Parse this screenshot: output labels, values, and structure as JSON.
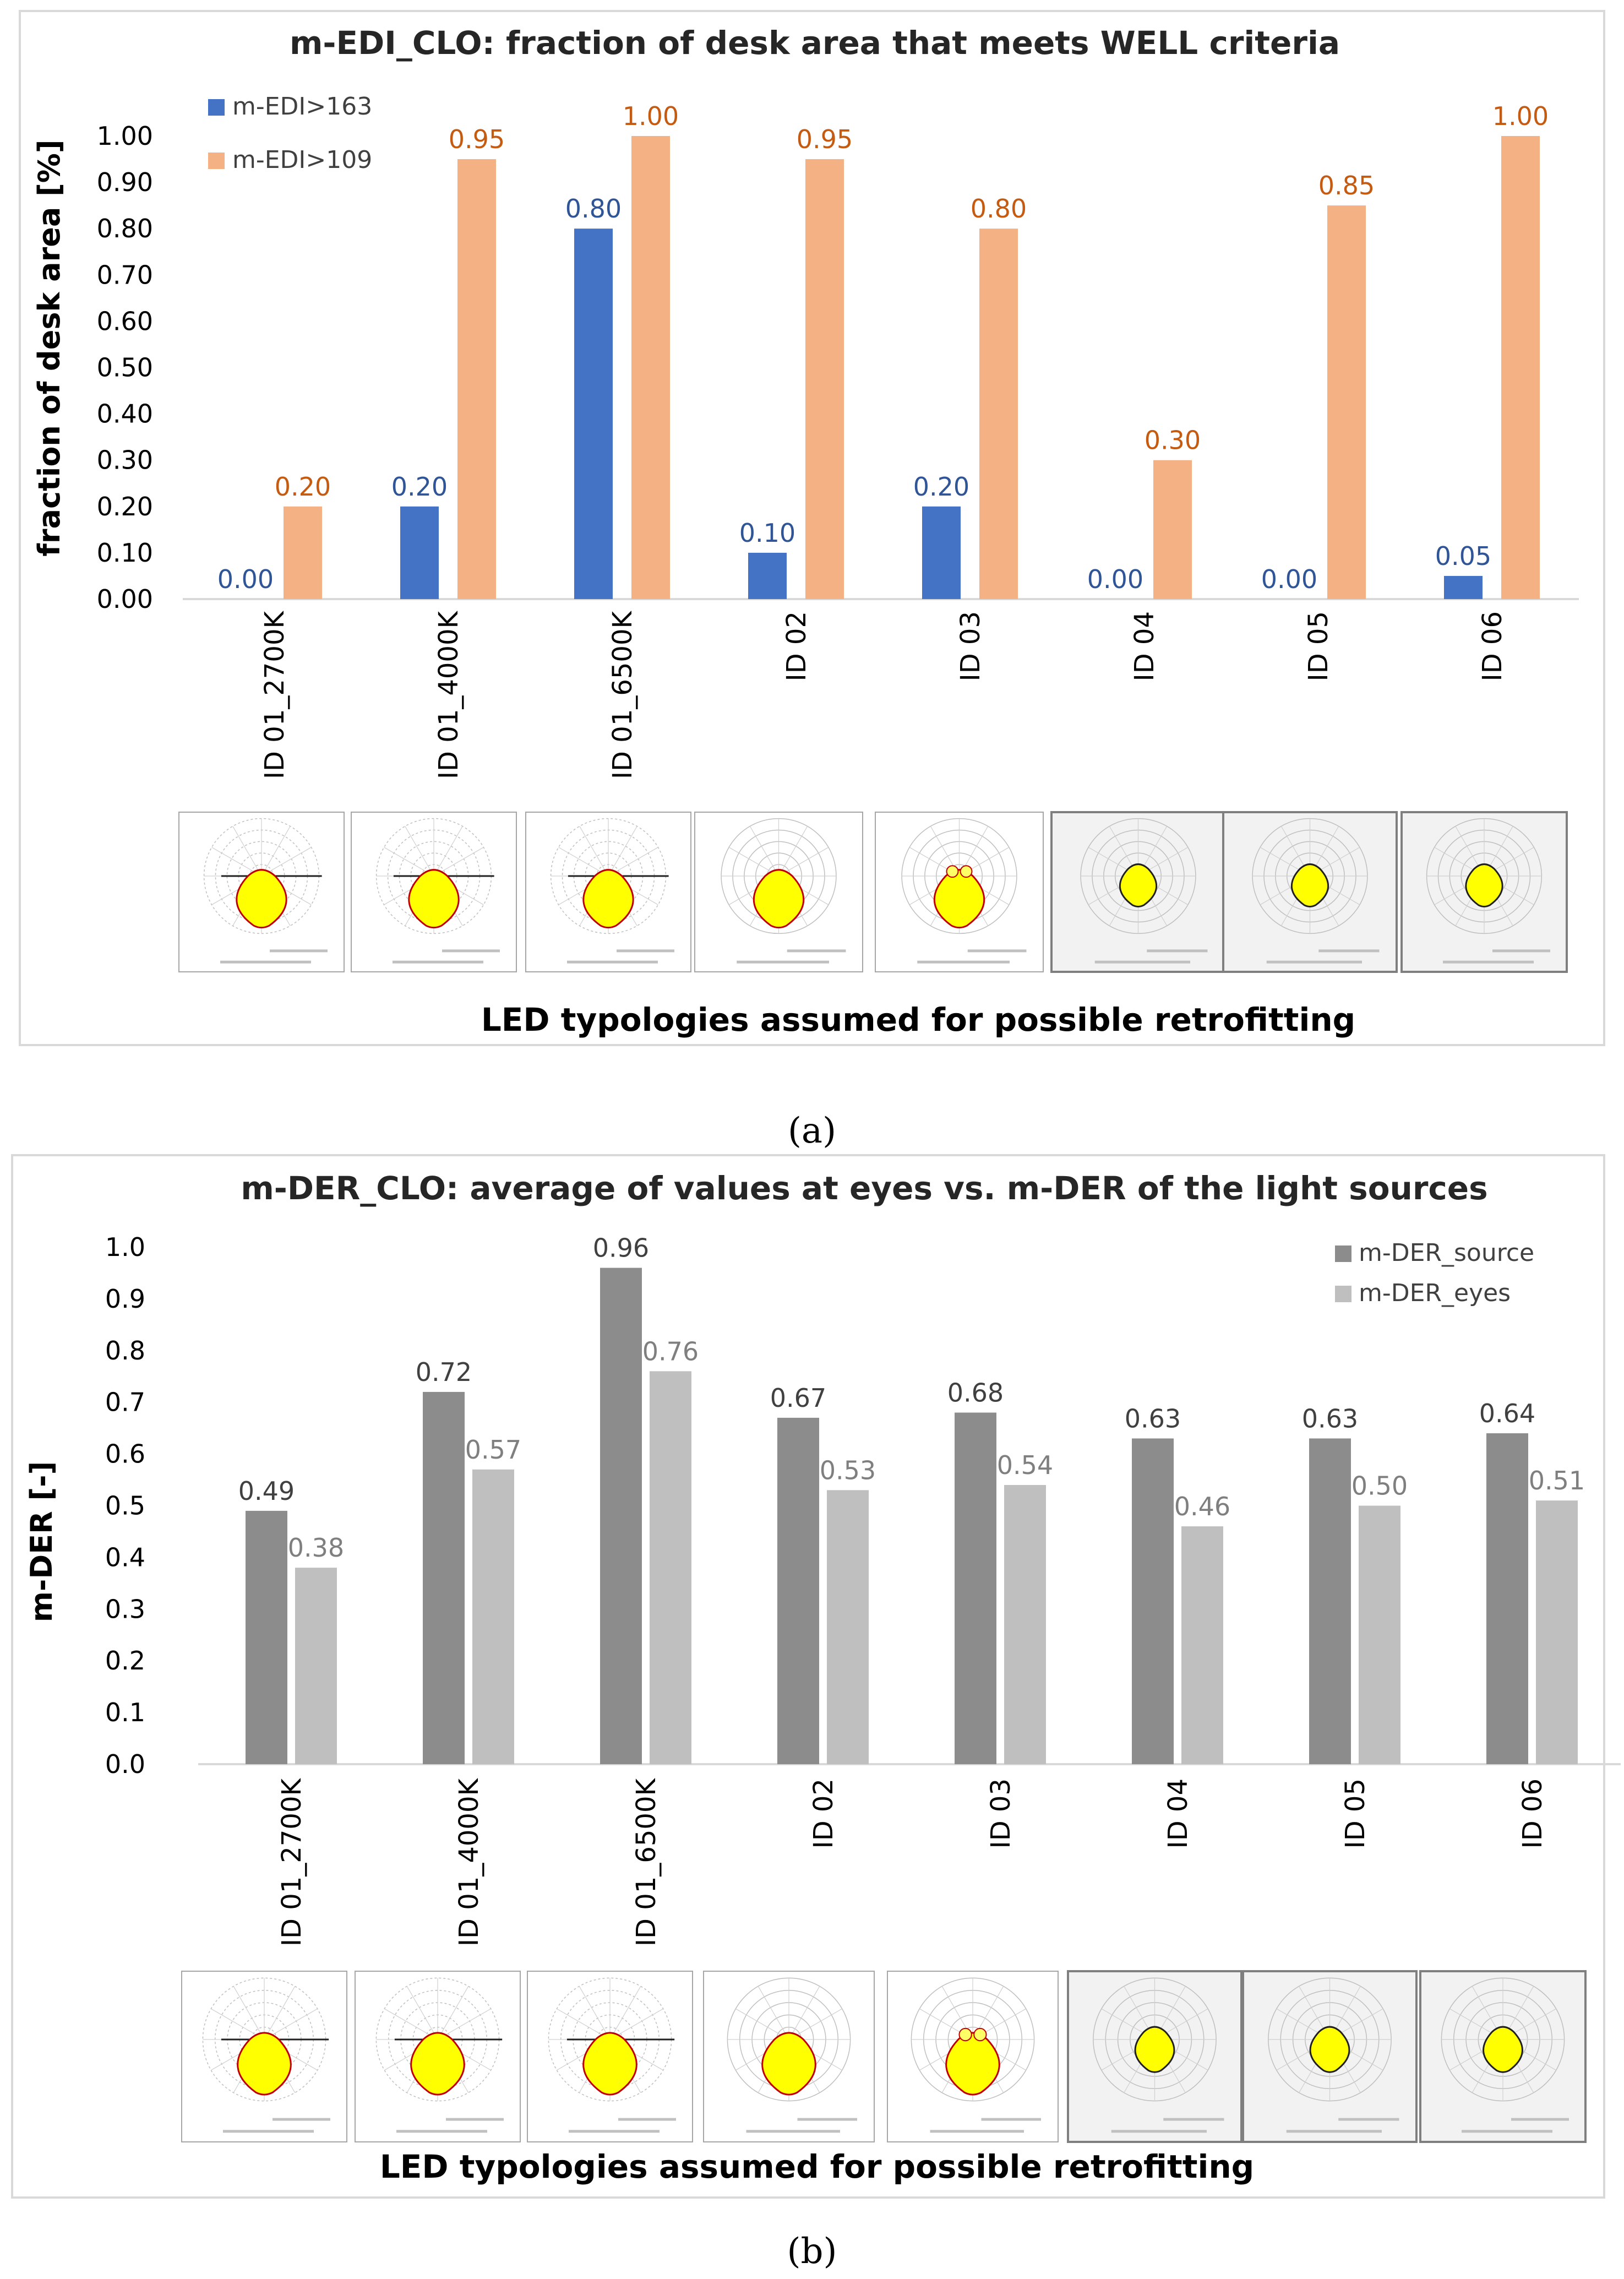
{
  "colors": {
    "series_blue": "#4472C4",
    "series_orange": "#F4B183",
    "label_blue": "#2F5597",
    "label_orange": "#C55A11",
    "series_dark_gray": "#8C8C8C",
    "series_light_gray": "#BFBFBF",
    "label_dark_gray": "#404040",
    "label_light_gray": "#7F7F7F",
    "polar_fill": "#FFFF00",
    "polar_line": "#C00000"
  },
  "strip_caption": "LED typologies assumed for possible retrofitting",
  "photometric_icons": [
    "polar-diagram-icon",
    "polar-diagram-icon",
    "polar-diagram-icon",
    "polar-diagram-icon",
    "polar-diagram-icon",
    "polar-diagram-icon",
    "polar-diagram-icon",
    "polar-diagram-icon"
  ],
  "chart_data": [
    {
      "type": "bar",
      "subfigure_label": "(a)",
      "title": "m-EDI_CLO: fraction of desk area that meets WELL criteria",
      "xlabel": "",
      "ylabel": "fraction of desk area  [%]",
      "ylim": [
        0,
        1
      ],
      "ytick_step": 0.1,
      "ytick_decimals": 2,
      "label_decimals": 2,
      "legend_position": "top-left",
      "categories": [
        "ID 01_2700K",
        "ID 01_4000K",
        "ID 01_6500K",
        "ID 02",
        "ID 03",
        "ID 04",
        "ID 05",
        "ID 06"
      ],
      "series": [
        {
          "name": "m-EDI>163",
          "values": [
            0.0,
            0.2,
            0.8,
            0.1,
            0.2,
            0.0,
            0.0,
            0.05
          ],
          "color": "#4472C4",
          "label_color": "#2F5597"
        },
        {
          "name": "m-EDI>109",
          "values": [
            0.2,
            0.95,
            1.0,
            0.95,
            0.8,
            0.3,
            0.85,
            1.0
          ],
          "color": "#F4B183",
          "label_color": "#C55A11"
        }
      ],
      "grid": false
    },
    {
      "type": "bar",
      "subfigure_label": "(b)",
      "title": "m-DER_CLO: average of values at eyes vs. m-DER of the light sources",
      "xlabel": "",
      "ylabel": "m-DER  [-]",
      "ylim": [
        0,
        1
      ],
      "ytick_step": 0.1,
      "ytick_decimals": 1,
      "label_decimals": 2,
      "legend_position": "top-right",
      "categories": [
        "ID 01_2700K",
        "ID 01_4000K",
        "ID 01_6500K",
        "ID 02",
        "ID 03",
        "ID 04",
        "ID 05",
        "ID 06"
      ],
      "series": [
        {
          "name": "m-DER_source",
          "values": [
            0.49,
            0.72,
            0.96,
            0.67,
            0.68,
            0.63,
            0.63,
            0.64
          ],
          "color": "#8C8C8C",
          "label_color": "#404040"
        },
        {
          "name": "m-DER_eyes",
          "values": [
            0.38,
            0.57,
            0.76,
            0.53,
            0.54,
            0.46,
            0.5,
            0.51
          ],
          "color": "#BFBFBF",
          "label_color": "#7F7F7F"
        }
      ],
      "grid": false
    }
  ]
}
